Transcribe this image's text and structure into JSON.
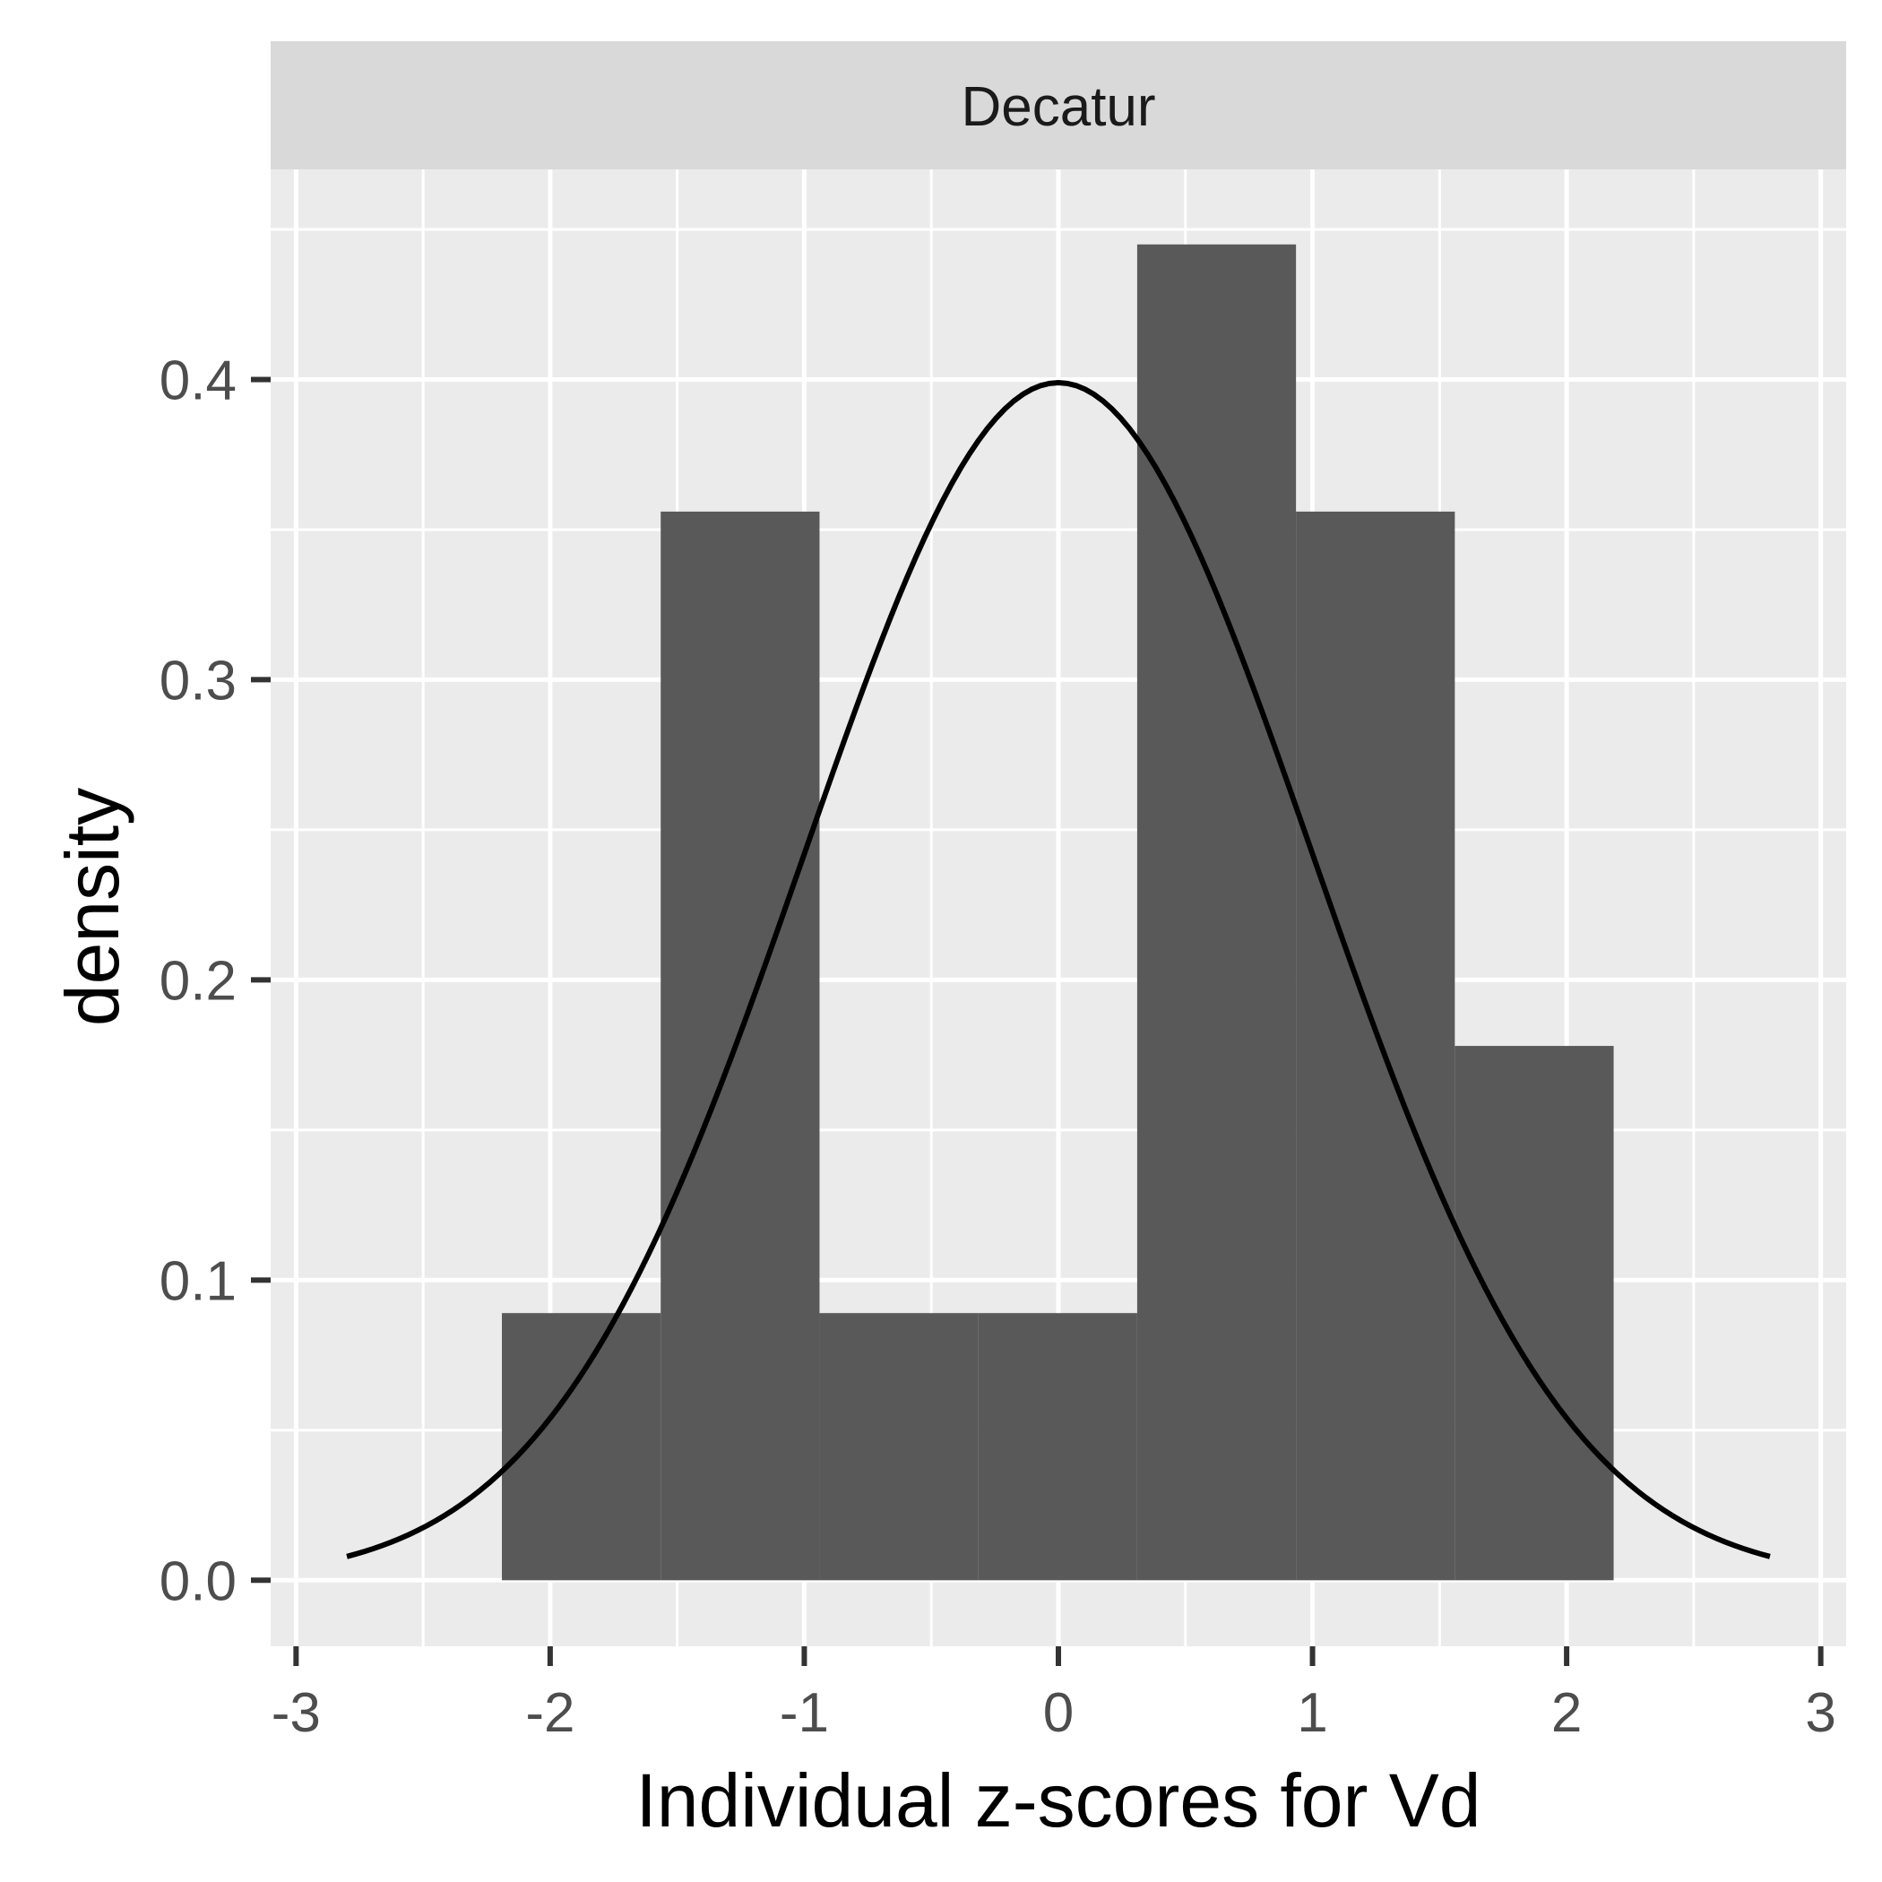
{
  "chart_data": {
    "type": "bar",
    "facet_label": "Decatur",
    "xlabel": "Individual z-scores for Vd",
    "ylabel": "density",
    "xlim": [
      -3.1,
      3.1
    ],
    "ylim": [
      -0.022,
      0.47
    ],
    "x_ticks": [
      -3,
      -2,
      -1,
      0,
      1,
      2,
      3
    ],
    "x_tick_labels": [
      "-3",
      "-2",
      "-1",
      "0",
      "1",
      "2",
      "3"
    ],
    "y_ticks": [
      0.0,
      0.1,
      0.2,
      0.3,
      0.4
    ],
    "y_tick_labels": [
      "0.0",
      "0.1",
      "0.2",
      "0.3",
      "0.4"
    ],
    "grid": true,
    "histogram": {
      "bins": [
        {
          "x0": -2.19,
          "x1": -1.565,
          "density": 0.089
        },
        {
          "x0": -1.565,
          "x1": -0.94,
          "density": 0.356
        },
        {
          "x0": -0.94,
          "x1": -0.315,
          "density": 0.089
        },
        {
          "x0": -0.315,
          "x1": 0.31,
          "density": 0.089
        },
        {
          "x0": 0.31,
          "x1": 0.935,
          "density": 0.445
        },
        {
          "x0": 0.935,
          "x1": 1.56,
          "density": 0.356
        },
        {
          "x0": 1.56,
          "x1": 2.185,
          "density": 0.178
        }
      ],
      "fill": "#595959"
    },
    "density_curve": {
      "distribution": "normal",
      "mean": 0,
      "sd": 1,
      "x_range": [
        -2.8,
        2.8
      ],
      "color": "#000000"
    },
    "panel_background": "#ebebeb",
    "strip_background": "#d9d9d9"
  }
}
